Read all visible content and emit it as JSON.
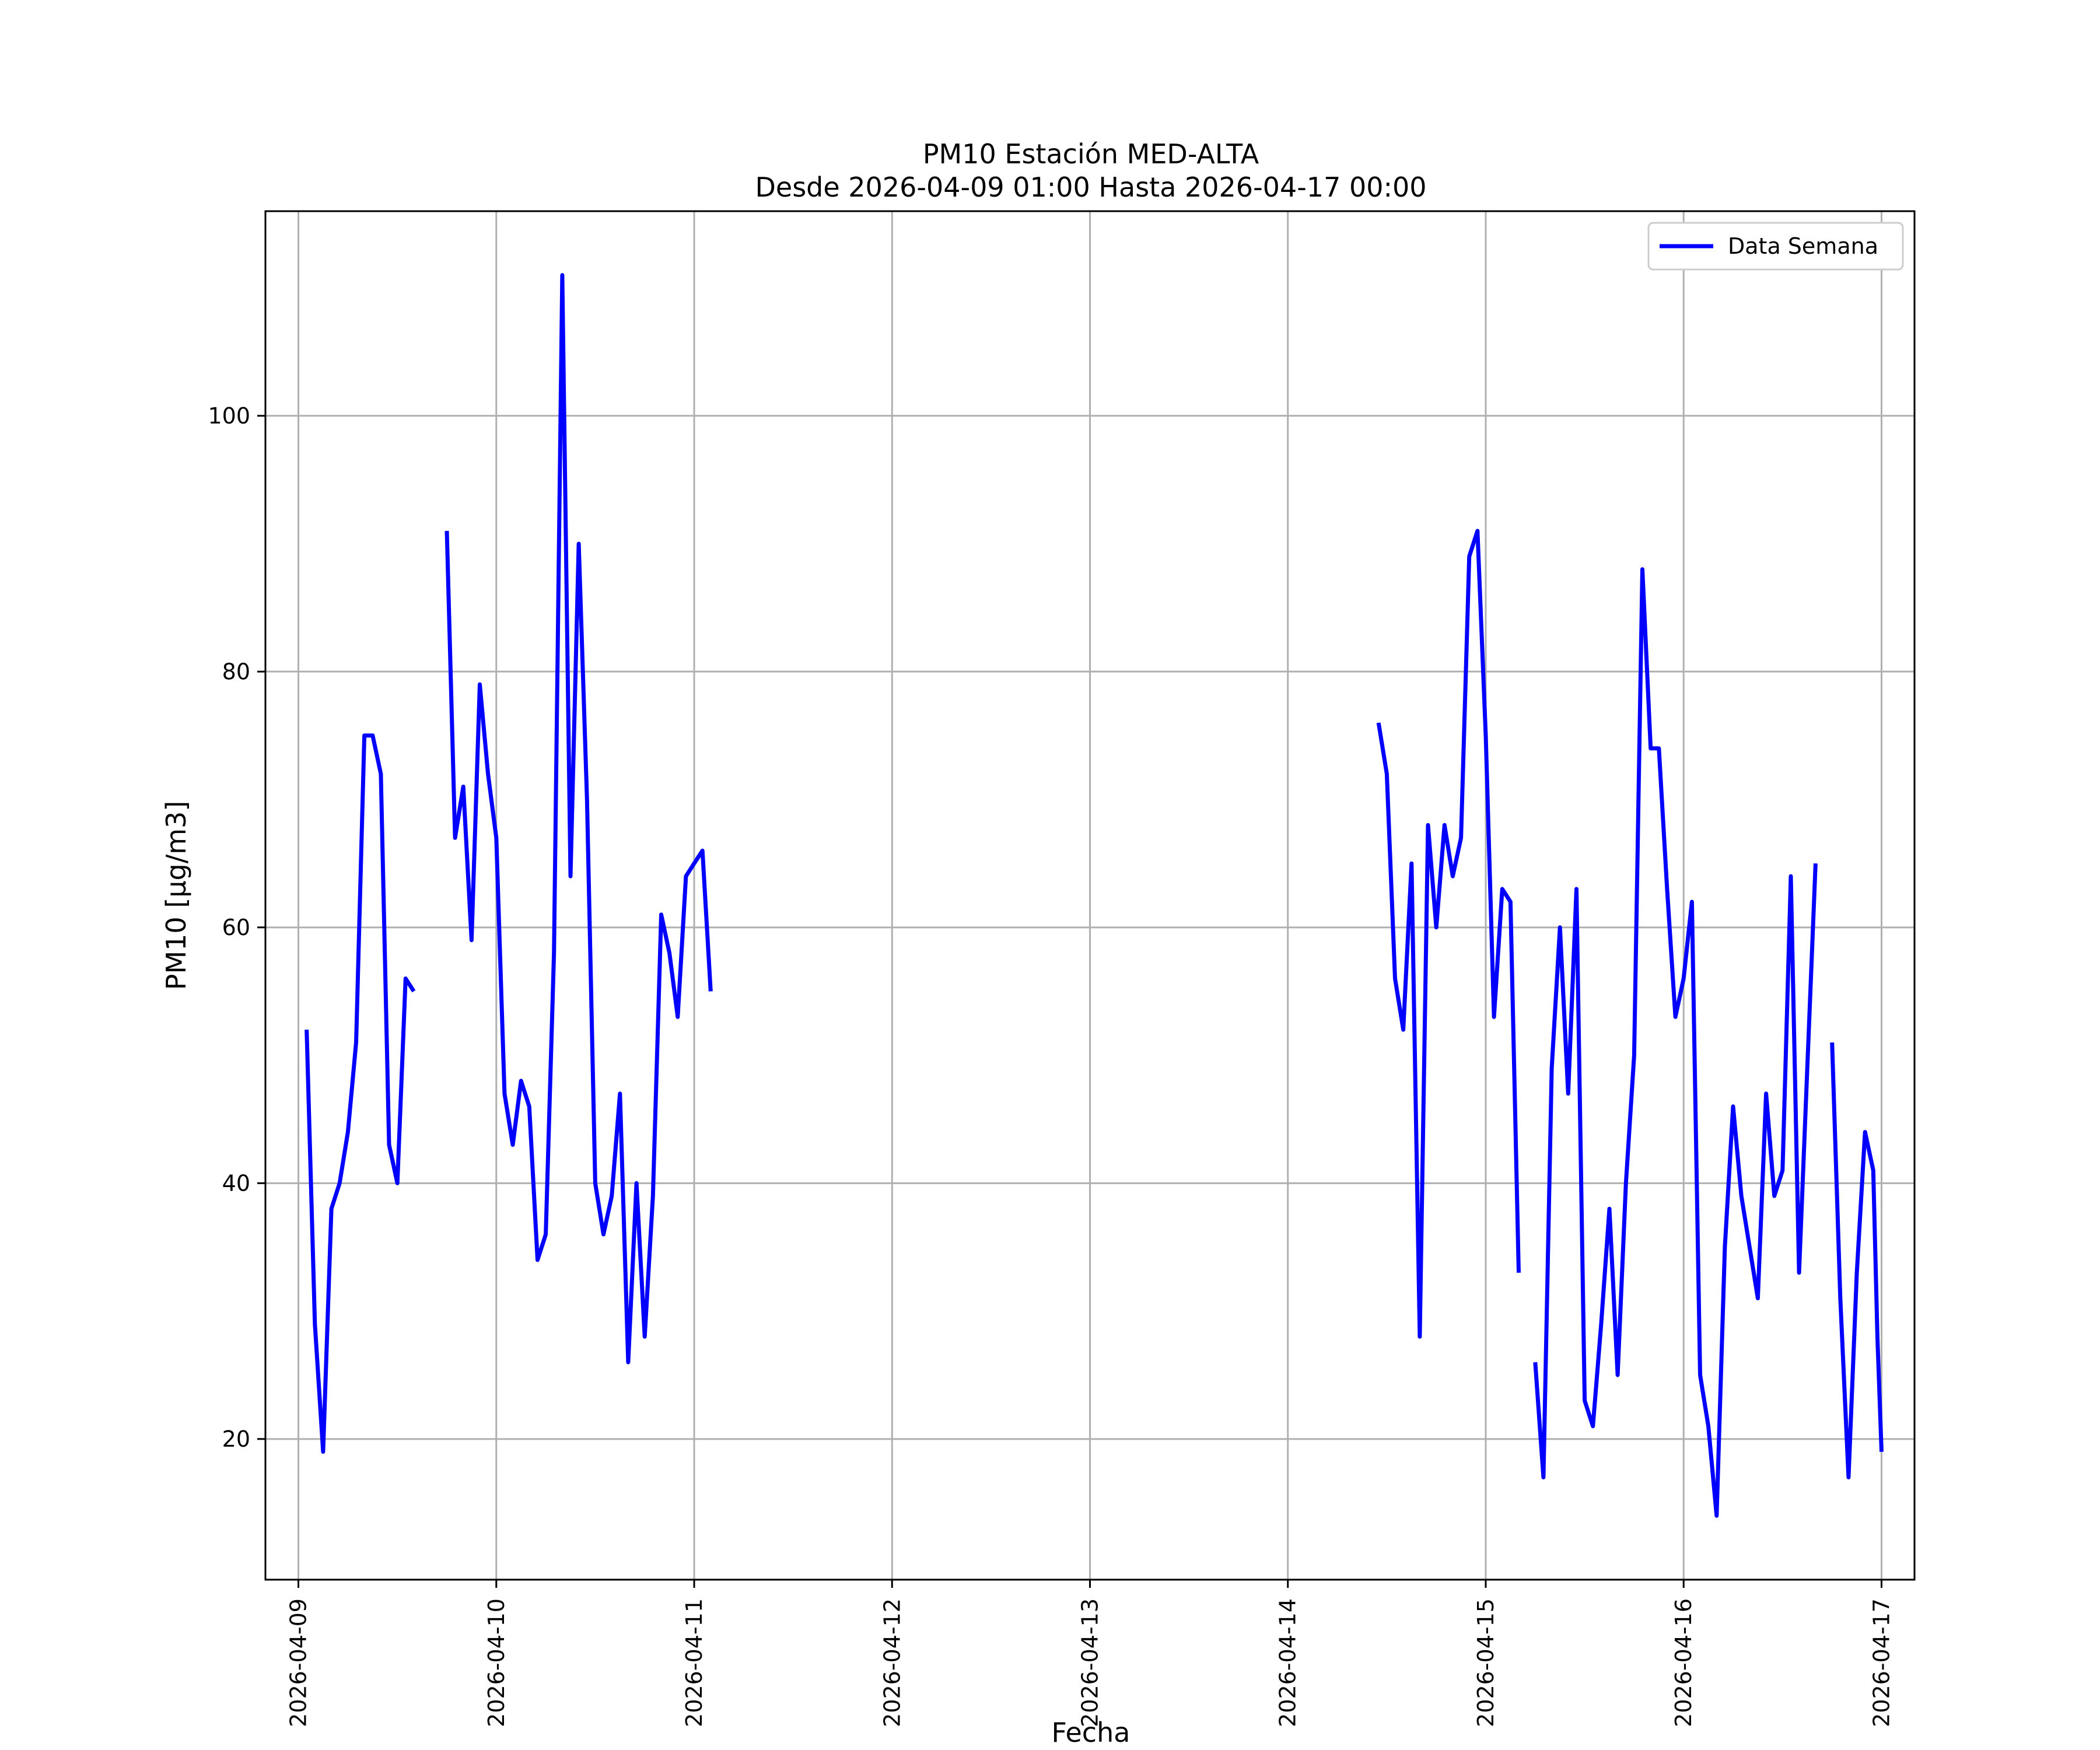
{
  "chart_data": {
    "type": "line",
    "title": "PM10 Estación MED-ALTA",
    "subtitle": "Desde 2026-04-09 01:00 Hasta 2026-04-17 00:00",
    "xlabel": "Fecha",
    "ylabel": "PM10 [μg/m3]",
    "xlim": [
      "2026-04-08T20:00",
      "2026-04-17T04:00"
    ],
    "ylim": [
      9,
      116
    ],
    "grid": true,
    "legend_position": "upper-right",
    "x_ticks": [
      "2026-04-09",
      "2026-04-10",
      "2026-04-11",
      "2026-04-12",
      "2026-04-13",
      "2026-04-14",
      "2026-04-15",
      "2026-04-16",
      "2026-04-17"
    ],
    "y_ticks": [
      20,
      40,
      60,
      80,
      100
    ],
    "series": [
      {
        "name": "Data Semana",
        "color": "#0000ff",
        "points": [
          [
            "2026-04-09T01:00",
            52
          ],
          [
            "2026-04-09T02:00",
            29
          ],
          [
            "2026-04-09T03:00",
            19
          ],
          [
            "2026-04-09T04:00",
            38
          ],
          [
            "2026-04-09T05:00",
            40
          ],
          [
            "2026-04-09T06:00",
            44
          ],
          [
            "2026-04-09T07:00",
            51
          ],
          [
            "2026-04-09T08:00",
            75
          ],
          [
            "2026-04-09T09:00",
            75
          ],
          [
            "2026-04-09T10:00",
            72
          ],
          [
            "2026-04-09T11:00",
            43
          ],
          [
            "2026-04-09T12:00",
            40
          ],
          [
            "2026-04-09T13:00",
            56
          ],
          [
            "2026-04-09T14:00",
            55
          ],
          [
            "2026-04-09T15:00",
            null
          ],
          [
            "2026-04-09T16:00",
            null
          ],
          [
            "2026-04-09T17:00",
            null
          ],
          [
            "2026-04-09T18:00",
            91
          ],
          [
            "2026-04-09T19:00",
            67
          ],
          [
            "2026-04-09T20:00",
            71
          ],
          [
            "2026-04-09T21:00",
            59
          ],
          [
            "2026-04-09T22:00",
            79
          ],
          [
            "2026-04-09T23:00",
            72
          ],
          [
            "2026-04-10T00:00",
            67
          ],
          [
            "2026-04-10T01:00",
            47
          ],
          [
            "2026-04-10T02:00",
            43
          ],
          [
            "2026-04-10T03:00",
            48
          ],
          [
            "2026-04-10T04:00",
            46
          ],
          [
            "2026-04-10T05:00",
            34
          ],
          [
            "2026-04-10T06:00",
            36
          ],
          [
            "2026-04-10T07:00",
            58
          ],
          [
            "2026-04-10T08:00",
            111
          ],
          [
            "2026-04-10T09:00",
            64
          ],
          [
            "2026-04-10T10:00",
            90
          ],
          [
            "2026-04-10T11:00",
            70
          ],
          [
            "2026-04-10T12:00",
            40
          ],
          [
            "2026-04-10T13:00",
            36
          ],
          [
            "2026-04-10T14:00",
            39
          ],
          [
            "2026-04-10T15:00",
            47
          ],
          [
            "2026-04-10T16:00",
            26
          ],
          [
            "2026-04-10T17:00",
            40
          ],
          [
            "2026-04-10T18:00",
            28
          ],
          [
            "2026-04-10T19:00",
            39
          ],
          [
            "2026-04-10T20:00",
            61
          ],
          [
            "2026-04-10T21:00",
            58
          ],
          [
            "2026-04-10T22:00",
            53
          ],
          [
            "2026-04-10T23:00",
            64
          ],
          [
            "2026-04-11T00:00",
            65
          ],
          [
            "2026-04-11T01:00",
            66
          ],
          [
            "2026-04-11T02:00",
            55
          ],
          [
            "2026-04-11T03:00",
            null
          ],
          [
            "2026-04-14T10:00",
            null
          ],
          [
            "2026-04-14T11:00",
            76
          ],
          [
            "2026-04-14T12:00",
            72
          ],
          [
            "2026-04-14T13:00",
            56
          ],
          [
            "2026-04-14T14:00",
            52
          ],
          [
            "2026-04-14T15:00",
            65
          ],
          [
            "2026-04-14T16:00",
            28
          ],
          [
            "2026-04-14T17:00",
            68
          ],
          [
            "2026-04-14T18:00",
            60
          ],
          [
            "2026-04-14T19:00",
            68
          ],
          [
            "2026-04-14T20:00",
            64
          ],
          [
            "2026-04-14T21:00",
            67
          ],
          [
            "2026-04-14T22:00",
            89
          ],
          [
            "2026-04-14T23:00",
            91
          ],
          [
            "2026-04-15T00:00",
            75
          ],
          [
            "2026-04-15T01:00",
            53
          ],
          [
            "2026-04-15T02:00",
            63
          ],
          [
            "2026-04-15T03:00",
            62
          ],
          [
            "2026-04-15T04:00",
            33
          ],
          [
            "2026-04-15T05:00",
            null
          ],
          [
            "2026-04-15T06:00",
            26
          ],
          [
            "2026-04-15T07:00",
            17
          ],
          [
            "2026-04-15T08:00",
            49
          ],
          [
            "2026-04-15T09:00",
            60
          ],
          [
            "2026-04-15T10:00",
            47
          ],
          [
            "2026-04-15T11:00",
            63
          ],
          [
            "2026-04-15T12:00",
            23
          ],
          [
            "2026-04-15T13:00",
            21
          ],
          [
            "2026-04-15T14:00",
            29
          ],
          [
            "2026-04-15T15:00",
            38
          ],
          [
            "2026-04-15T16:00",
            25
          ],
          [
            "2026-04-15T17:00",
            40
          ],
          [
            "2026-04-15T18:00",
            50
          ],
          [
            "2026-04-15T19:00",
            88
          ],
          [
            "2026-04-15T20:00",
            74
          ],
          [
            "2026-04-15T21:00",
            74
          ],
          [
            "2026-04-15T22:00",
            63
          ],
          [
            "2026-04-15T23:00",
            53
          ],
          [
            "2026-04-16T00:00",
            56
          ],
          [
            "2026-04-16T01:00",
            62
          ],
          [
            "2026-04-16T02:00",
            25
          ],
          [
            "2026-04-16T03:00",
            21
          ],
          [
            "2026-04-16T04:00",
            14
          ],
          [
            "2026-04-16T05:00",
            35
          ],
          [
            "2026-04-16T06:00",
            46
          ],
          [
            "2026-04-16T07:00",
            39
          ],
          [
            "2026-04-16T08:00",
            35
          ],
          [
            "2026-04-16T09:00",
            31
          ],
          [
            "2026-04-16T10:00",
            47
          ],
          [
            "2026-04-16T11:00",
            39
          ],
          [
            "2026-04-16T12:00",
            41
          ],
          [
            "2026-04-16T13:00",
            64
          ],
          [
            "2026-04-16T14:00",
            33
          ],
          [
            "2026-04-16T15:00",
            49
          ],
          [
            "2026-04-16T16:00",
            65
          ],
          [
            "2026-04-16T17:00",
            null
          ],
          [
            "2026-04-16T18:00",
            51
          ],
          [
            "2026-04-16T19:00",
            31
          ],
          [
            "2026-04-16T20:00",
            17
          ],
          [
            "2026-04-16T21:00",
            33
          ],
          [
            "2026-04-16T22:00",
            44
          ],
          [
            "2026-04-16T23:00",
            41
          ],
          [
            "2026-04-16T23:30",
            28
          ],
          [
            "2026-04-17T00:00",
            19
          ]
        ]
      }
    ]
  }
}
